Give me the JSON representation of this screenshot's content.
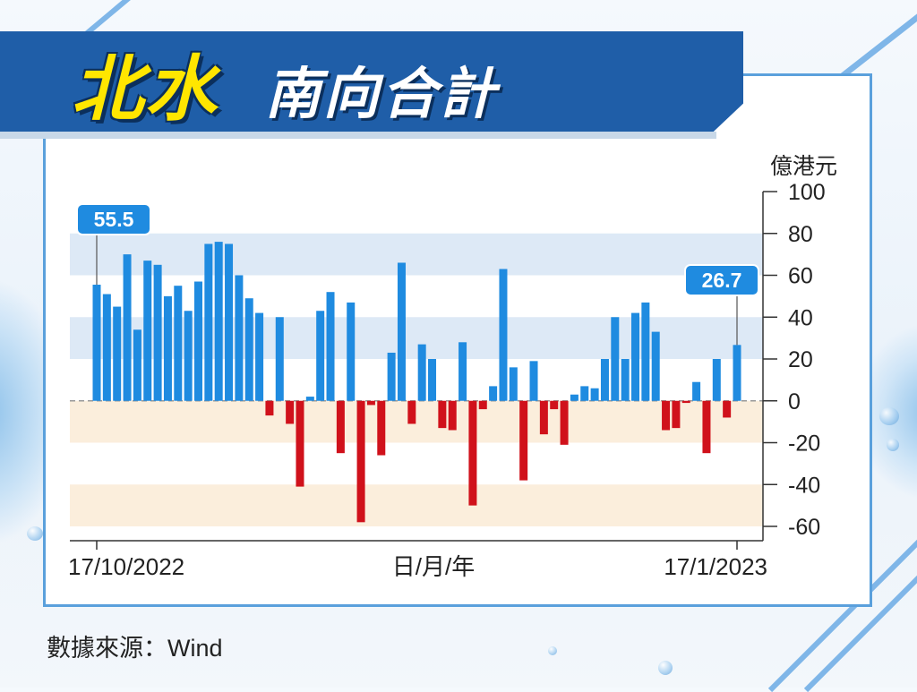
{
  "header": {
    "title_highlight": "北水",
    "title_rest": "南向合計"
  },
  "source": "數據來源：Wind",
  "colors": {
    "positive": "#1f8be0",
    "negative": "#d0111b",
    "banner": "#1f5ea8",
    "title_highlight": "#ffe600"
  },
  "chart_data": {
    "type": "bar",
    "unit_label": "億港元",
    "xlabel": "日/月/年",
    "x_tick_labels": [
      "17/10/2022",
      "17/1/2023"
    ],
    "ylim": [
      -60,
      100
    ],
    "yticks": [
      100,
      80,
      60,
      40,
      20,
      0,
      -20,
      -40,
      -60
    ],
    "values": [
      55.5,
      51,
      45,
      70,
      34,
      67,
      65,
      50,
      55,
      43,
      57,
      75,
      76,
      75,
      60,
      49,
      42,
      -7,
      40,
      -11,
      -41,
      2,
      43,
      52,
      -25,
      47,
      -58,
      -2,
      -26,
      23,
      66,
      -11,
      27,
      20,
      -13,
      -14,
      28,
      -50,
      -4,
      7,
      63,
      16,
      -38,
      19,
      -16,
      -4,
      -21,
      3,
      7,
      6,
      20,
      40,
      20,
      42,
      47,
      33,
      -14,
      -13,
      -1,
      9,
      -25,
      20,
      -8,
      26.7
    ],
    "annotations": [
      {
        "label": "55.5",
        "index": 0
      },
      {
        "label": "26.7",
        "index": 63
      }
    ]
  }
}
